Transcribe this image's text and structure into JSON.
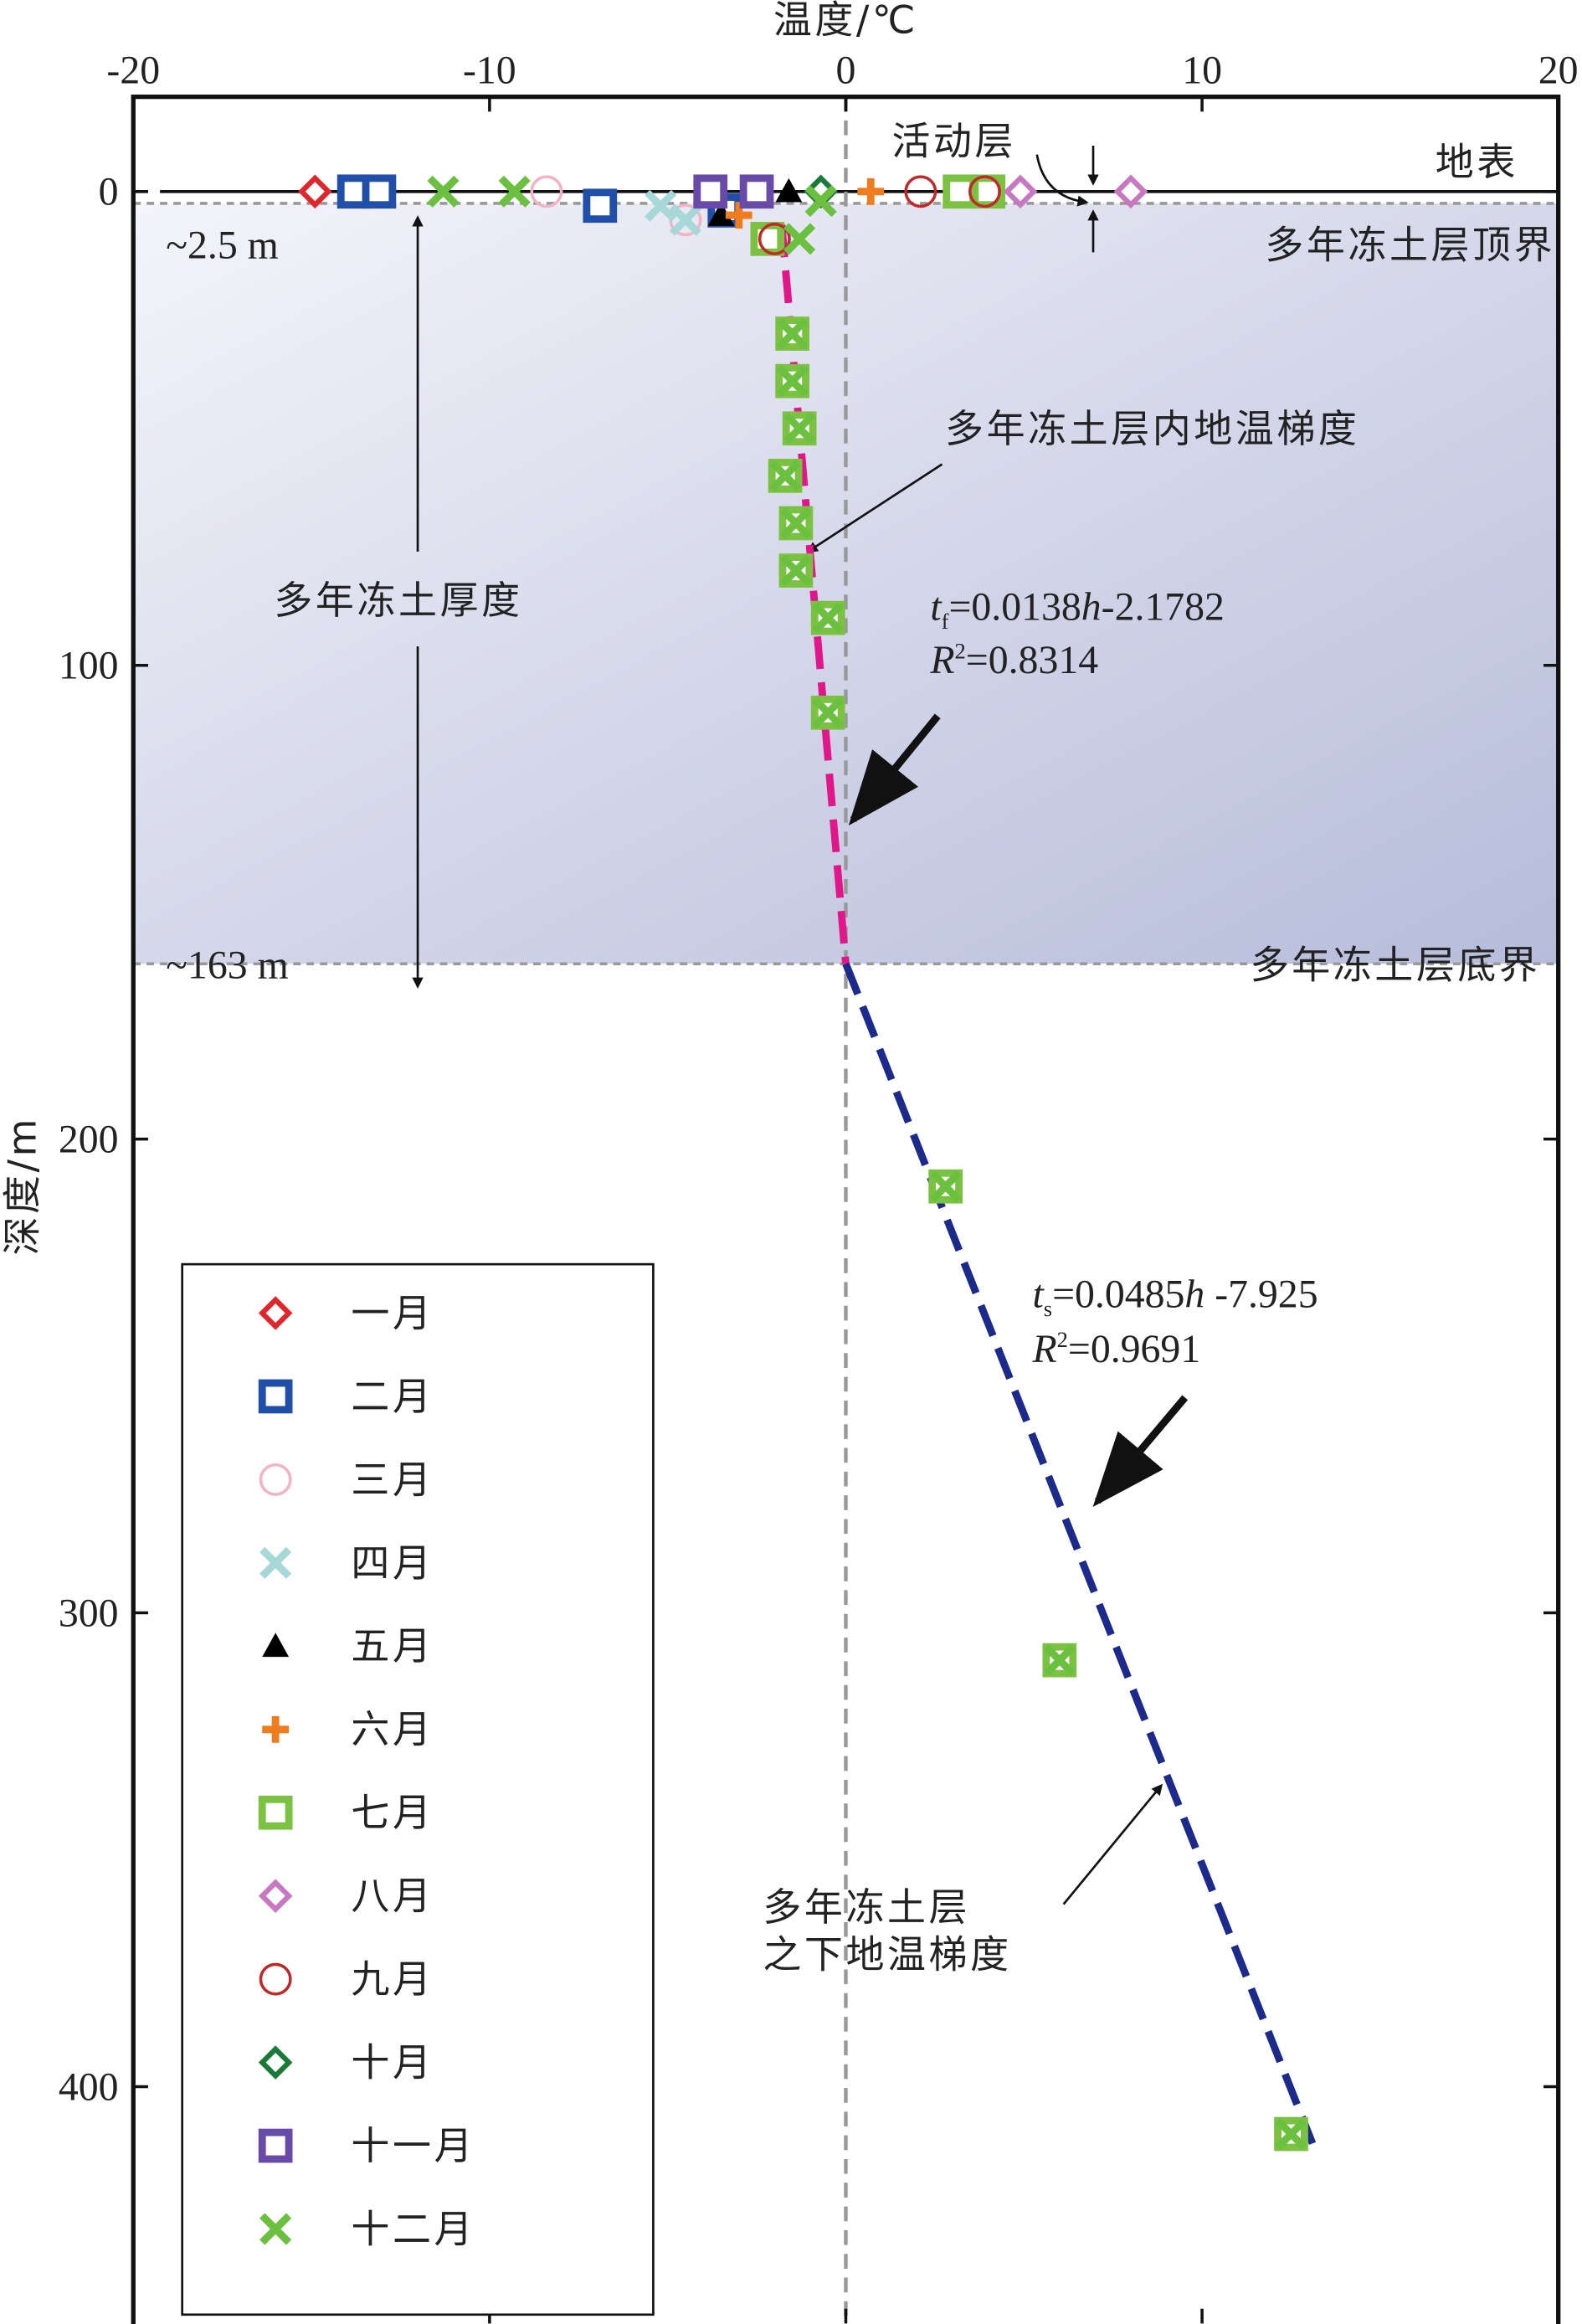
{
  "chart_data": {
    "type": "scatter",
    "xlabel": "温度/℃",
    "ylabel": "深度/m",
    "xlim": [
      -20,
      20
    ],
    "xticks": [
      -20,
      -10,
      0,
      10,
      20
    ],
    "ylim": [
      -20,
      450
    ],
    "yticks": [
      0,
      100,
      200,
      300,
      400
    ],
    "y_inverted": true,
    "series": [
      {
        "name": "一月",
        "color": "#e0262a",
        "marker": "diamond",
        "x": [
          -14.9,
          -13.3
        ],
        "values": [
          0,
          0
        ]
      },
      {
        "name": "二月",
        "color": "#1f4fa8",
        "marker": "square",
        "x": [
          -13.8,
          -13.1,
          -6.9,
          -3.4
        ],
        "values": [
          0,
          0,
          3,
          4
        ]
      },
      {
        "name": "三月",
        "color": "#f2b3c4",
        "marker": "circle",
        "x": [
          -8.4,
          -4.5
        ],
        "values": [
          0,
          6
        ]
      },
      {
        "name": "四月",
        "color": "#a6d8d8",
        "marker": "x",
        "x": [
          -5.2,
          -4.5
        ],
        "values": [
          3,
          6
        ]
      },
      {
        "name": "五月",
        "color": "#000000",
        "marker": "triangle",
        "x": [
          -1.6,
          -3.5
        ],
        "values": [
          0,
          5
        ]
      },
      {
        "name": "六月",
        "color": "#f07c20",
        "marker": "plus",
        "x": [
          0.7,
          -3.0,
          6.0
        ],
        "values": [
          0,
          5,
          310
        ]
      },
      {
        "name": "七月",
        "color": "#7cc242",
        "marker": "square",
        "x": [
          3.2,
          4.0,
          -2.2,
          -1.5,
          -1.5,
          -1.3,
          -1.7,
          -1.4,
          -1.4,
          -0.5,
          -0.5,
          2.8,
          6.0,
          12.5
        ],
        "values": [
          0,
          0,
          10,
          30,
          40,
          50,
          60,
          70,
          80,
          90,
          110,
          210,
          310,
          410
        ]
      },
      {
        "name": "八月",
        "color": "#c878c0",
        "marker": "diamond",
        "x": [
          4.9,
          8.0
        ],
        "values": [
          0,
          0
        ]
      },
      {
        "name": "九月",
        "color": "#c0282a",
        "marker": "circle",
        "x": [
          2.1,
          3.9,
          -2.0
        ],
        "values": [
          0,
          0,
          10
        ]
      },
      {
        "name": "十月",
        "color": "#1a7a3a",
        "marker": "diamond",
        "x": [
          -0.7
        ],
        "values": [
          0
        ]
      },
      {
        "name": "十一月",
        "color": "#6a4aa8",
        "marker": "square",
        "x": [
          -3.8,
          -2.5
        ],
        "values": [
          0,
          0
        ]
      },
      {
        "name": "十二月",
        "color": "#6cc040",
        "marker": "x",
        "x": [
          -11.3,
          -9.3,
          -0.7,
          -1.3,
          -1.5,
          -1.5,
          -1.3,
          -1.7,
          -1.4,
          -1.4,
          -0.5,
          -0.5,
          2.8,
          6.0,
          12.5
        ],
        "values": [
          0,
          0,
          2,
          10,
          30,
          40,
          50,
          60,
          70,
          80,
          90,
          110,
          210,
          310,
          410
        ]
      }
    ],
    "fit_lines": [
      {
        "color": "#e0168a",
        "x": [
          -1.8,
          0
        ],
        "values": [
          7,
          163
        ]
      },
      {
        "color": "#1c2a8c",
        "x": [
          0,
          13.1
        ],
        "values": [
          163,
          412
        ]
      }
    ],
    "permafrost_top": {
      "value": 2.5,
      "label": "~2.5 m"
    },
    "permafrost_bottom": {
      "value": 163,
      "label": "~163 m"
    },
    "annotations": {
      "active_layer": "活动层",
      "surface": "地表",
      "top_boundary": "多年冻土层顶界",
      "bottom_boundary": "多年冻土层底界",
      "thickness": "多年冻土厚度",
      "gradient_in": "多年冻土层内地温梯度",
      "gradient_below_1": "多年冻土层",
      "gradient_below_2": "之下地温梯度"
    },
    "equation_1": {
      "t": "t",
      "sub": "f",
      "a": "=0.0138",
      "h": "h",
      "b": "-2.1782",
      "R": "R",
      "sup": "2",
      "r2": "=0.8314"
    },
    "equation_2": {
      "t": "t",
      "sub": "s",
      "a": "=0.0485",
      "h": "h",
      "b": " -7.925",
      "R": "R",
      "sup": "2",
      "r2": "=0.9691"
    }
  }
}
